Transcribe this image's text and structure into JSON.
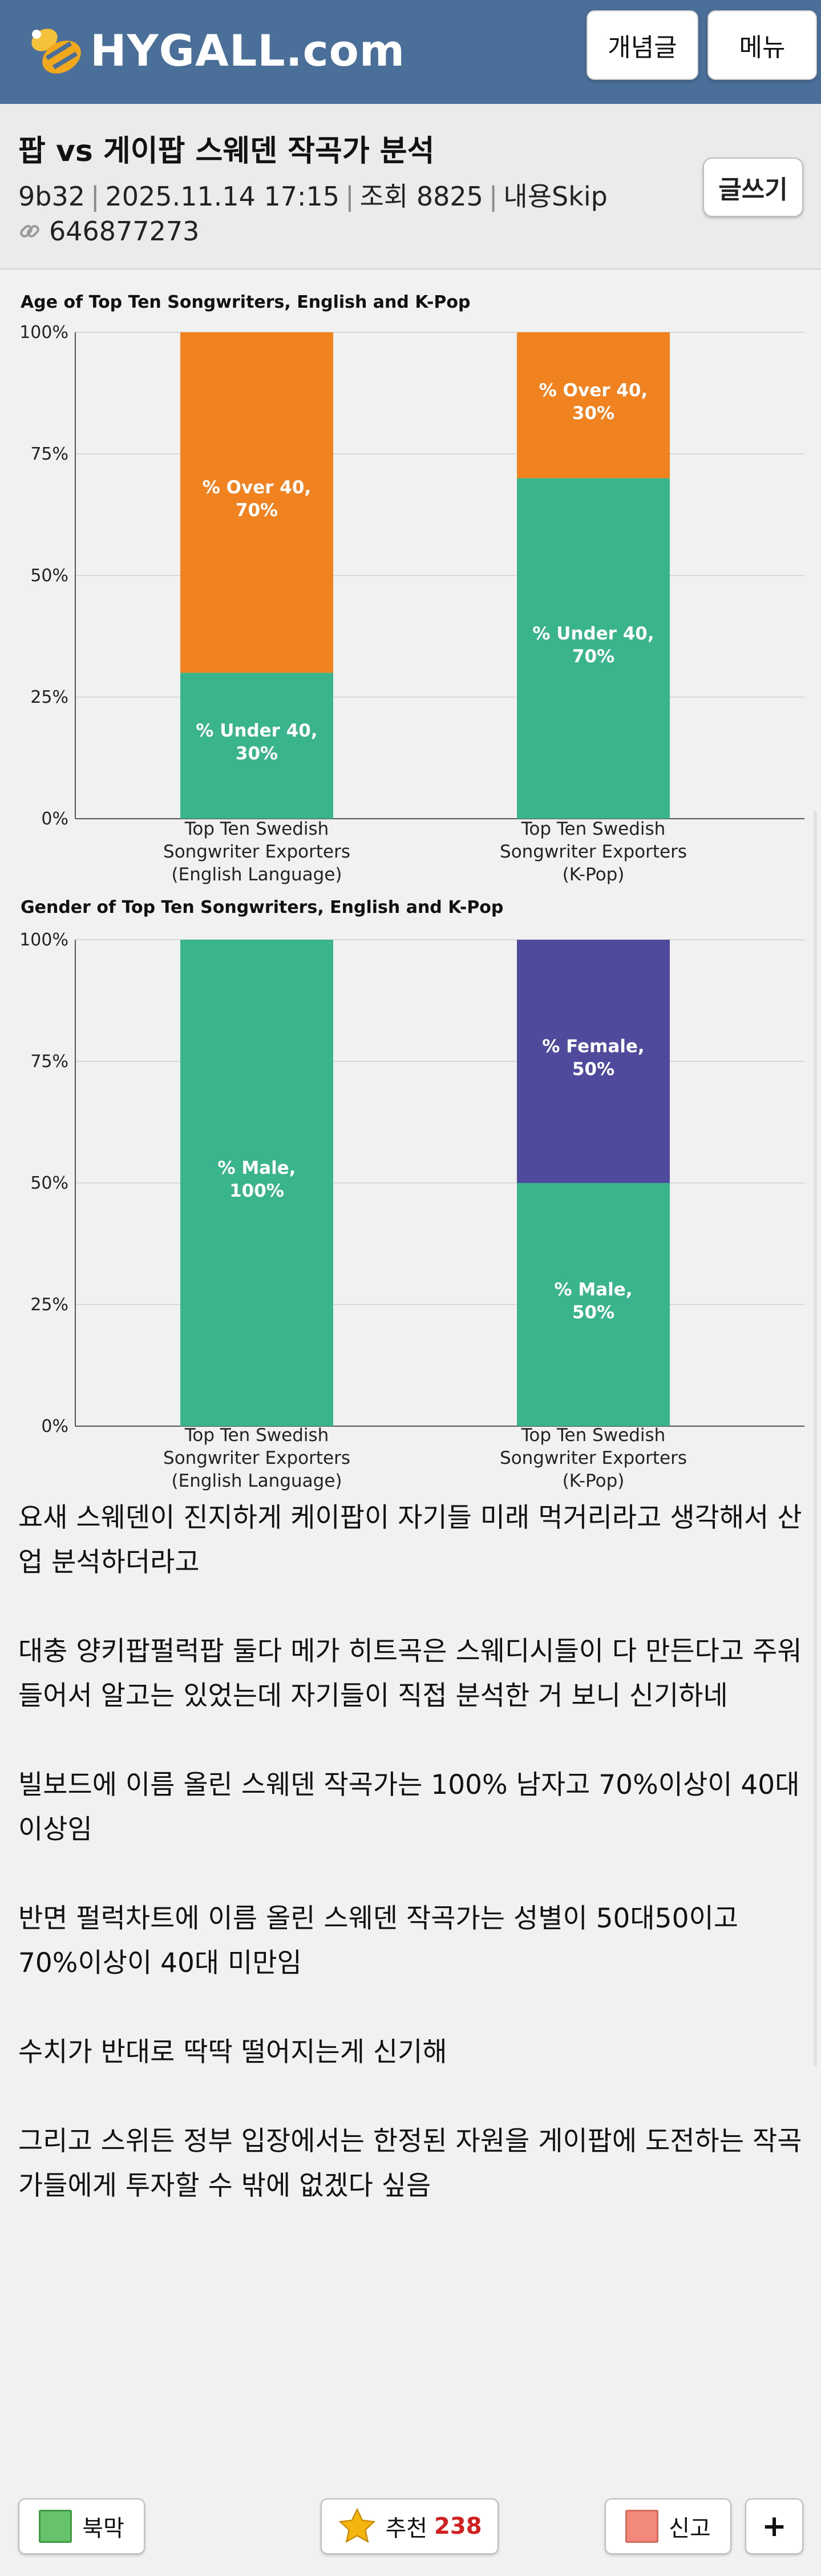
{
  "header": {
    "logo_text": "HYGALL.com",
    "logo_icon": "bee-logo-icon",
    "buttons": {
      "gaenyeom": "개념글",
      "menu": "메뉴"
    },
    "bg_color": "#4a6f99"
  },
  "post": {
    "title": "팝 vs 게이팝 스웨덴 작곡가 분석",
    "author": "9b32",
    "datetime": "2025.11.14 17:15",
    "views_label": "조회",
    "views": "8825",
    "skip_label": "내용Skip",
    "link_id": "646877273",
    "write_button": "글쓰기"
  },
  "chart_data": [
    {
      "type": "bar",
      "stacked": true,
      "title": "Age of Top Ten Songwriters, English and K-Pop",
      "y_ticks": [
        "0%",
        "25%",
        "50%",
        "75%",
        "100%"
      ],
      "ylim": [
        0,
        100
      ],
      "categories": [
        [
          "Top Ten Swedish",
          "Songwriter Exporters",
          "(English Language)"
        ],
        [
          "Top Ten Swedish",
          "Songwriter Exporters",
          "(K-Pop)"
        ]
      ],
      "series": [
        {
          "name": "% Under 40",
          "values": [
            30,
            70
          ],
          "labels": [
            [
              "% Under 40,",
              "30%"
            ],
            [
              "% Under 40,",
              "70%"
            ]
          ],
          "color": "#39b48c"
        },
        {
          "name": "% Over 40",
          "values": [
            70,
            30
          ],
          "labels": [
            [
              "% Over 40,",
              "70%"
            ],
            [
              "% Over 40,",
              "30%"
            ]
          ],
          "color": "#f0821f"
        }
      ],
      "grid": true
    },
    {
      "type": "bar",
      "stacked": true,
      "title": "Gender of Top Ten Songwriters, English and K-Pop",
      "y_ticks": [
        "0%",
        "25%",
        "50%",
        "75%",
        "100%"
      ],
      "ylim": [
        0,
        100
      ],
      "categories": [
        [
          "Top Ten Swedish",
          "Songwriter Exporters",
          "(English Language)"
        ],
        [
          "Top Ten Swedish",
          "Songwriter Exporters",
          "(K-Pop)"
        ]
      ],
      "series": [
        {
          "name": "% Male",
          "values": [
            100,
            50
          ],
          "labels": [
            [
              "% Male,",
              "100%"
            ],
            [
              "% Male,",
              "50%"
            ]
          ],
          "color": "#39b48c"
        },
        {
          "name": "% Female",
          "values": [
            0,
            50
          ],
          "labels": [
            null,
            [
              "% Female,",
              "50%"
            ]
          ],
          "color": "#4f4a9c"
        }
      ],
      "grid": true
    }
  ],
  "content": {
    "paragraphs": [
      "요새 스웨덴이 진지하게 케이팝이 자기들 미래 먹거리라고 생각해서 산업 분석하더라고",
      "대충 양키팝펄럭팝 둘다 메가 히트곡은 스웨디시들이 다 만든다고 주워들어서 알고는 있었는데 자기들이 직접 분석한 거 보니 신기하네",
      "빌보드에 이름 올린 스웨덴 작곡가는 100% 남자고 70%이상이 40대 이상임",
      "반면 펄럭차트에 이름 올린 스웨덴 작곡가는 성별이 50대50이고 70%이상이 40대 미만임",
      "수치가 반대로 딱딱 떨어지는게 신기해",
      "그리고 스위든 정부 입장에서는 한정된 자원을 게이팝에 도전하는 작곡가들에게 투자할 수 밖에 없겠다 싶음"
    ]
  },
  "footer": {
    "bookmark": "북막",
    "recommend_label": "추천",
    "recommend_count": "238",
    "report": "신고",
    "plus": "+"
  }
}
